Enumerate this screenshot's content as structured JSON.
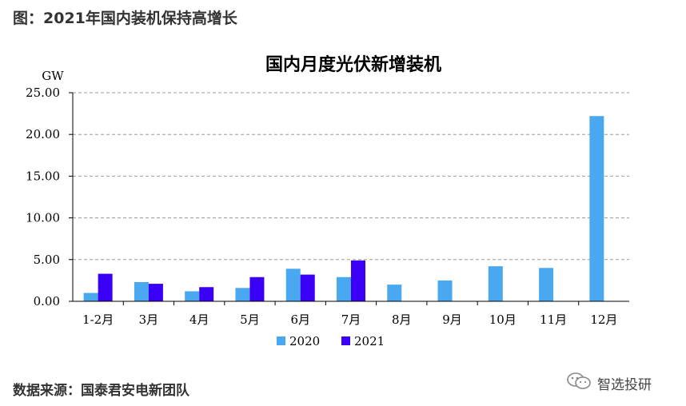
{
  "caption": "图：2021年国内装机保持高增长",
  "source": "数据来源：国泰君安电新团队",
  "watermark": {
    "text": "智选投研",
    "icon": "wechat-icon"
  },
  "colors": {
    "series_2020": "#4aa8f0",
    "series_2021": "#3a00f5",
    "grid": "#9a9a9a",
    "axis": "#000000"
  },
  "chart_data": {
    "type": "bar",
    "title": "国内月度光伏新增装机",
    "unit": "GW",
    "categories": [
      "1-2月",
      "3月",
      "4月",
      "5月",
      "6月",
      "7月",
      "8月",
      "9月",
      "10月",
      "11月",
      "12月"
    ],
    "series": [
      {
        "name": "2020",
        "values": [
          1.0,
          2.3,
          1.2,
          1.6,
          3.9,
          2.9,
          2.0,
          2.5,
          4.2,
          4.0,
          22.2
        ]
      },
      {
        "name": "2021",
        "values": [
          3.3,
          2.1,
          1.7,
          2.9,
          3.2,
          4.9,
          null,
          null,
          null,
          null,
          null
        ]
      }
    ],
    "yticks": [
      "0.00",
      "5.00",
      "10.00",
      "15.00",
      "20.00",
      "25.00"
    ],
    "ylim": [
      0,
      25
    ],
    "grid": true,
    "legend": "bottom"
  }
}
